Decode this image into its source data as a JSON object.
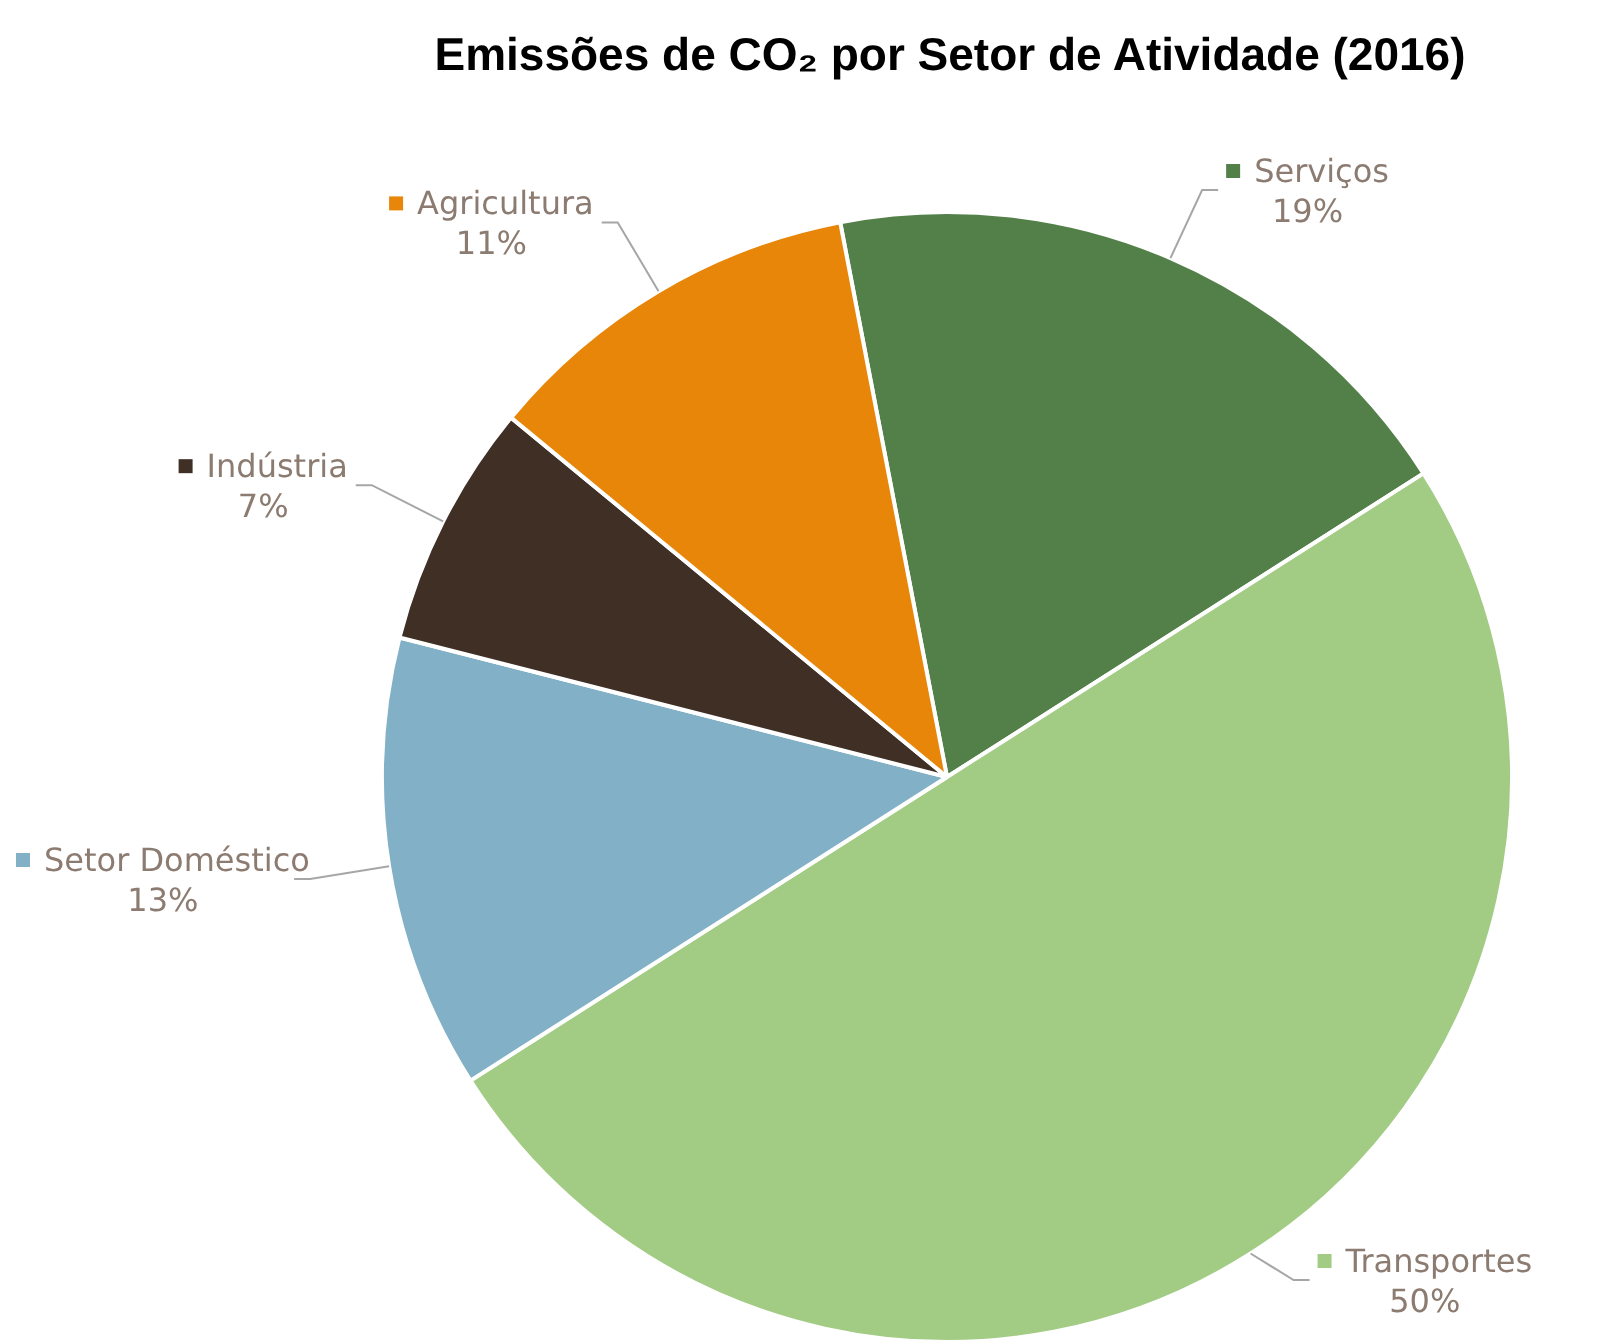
{
  "chart_data": {
    "type": "pie",
    "title": "Emissões de CO₂ por Setor de Atividade (2016)",
    "categories": [
      "Serviços",
      "Transportes",
      "Setor Doméstico",
      "Indústria",
      "Agricultura"
    ],
    "values": [
      19,
      50,
      13,
      7,
      11
    ],
    "colors": [
      "#538049",
      "#a2cb84",
      "#82b0c6",
      "#402f25",
      "#e88609"
    ],
    "value_labels": [
      "19%",
      "50%",
      "13%",
      "7%",
      "11%"
    ],
    "legend": "top left"
  }
}
